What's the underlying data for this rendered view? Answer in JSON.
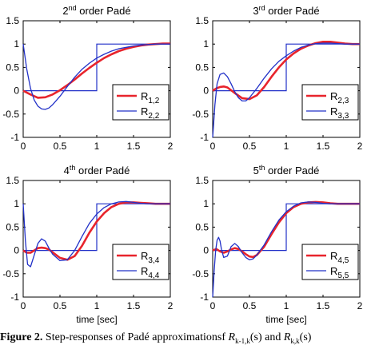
{
  "chart_data": [
    {
      "type": "line",
      "title": {
        "pre": "2",
        "sup": "nd",
        "post": " order Padé"
      },
      "xlabel": "",
      "xlim": [
        0,
        2
      ],
      "ylim": [
        -1,
        1.5
      ],
      "xticks": [
        "0",
        "0.5",
        "1",
        "1.5",
        "2"
      ],
      "yticks": [
        "-1",
        "-0.5",
        "0",
        "0.5",
        "1",
        "1.5"
      ],
      "legend": "right",
      "series": [
        {
          "name": "R",
          "sub": "1,2",
          "color": "#e8242c",
          "x": [
            0,
            0.1,
            0.2,
            0.3,
            0.4,
            0.5,
            0.6,
            0.7,
            0.8,
            0.9,
            1.0,
            1.1,
            1.2,
            1.3,
            1.4,
            1.5,
            1.6,
            1.7,
            1.8,
            1.9,
            2.0
          ],
          "y": [
            0,
            -0.08,
            -0.15,
            -0.14,
            -0.08,
            0.01,
            0.12,
            0.24,
            0.37,
            0.49,
            0.6,
            0.7,
            0.78,
            0.85,
            0.9,
            0.94,
            0.97,
            0.99,
            1.0,
            1.01,
            1.01
          ]
        },
        {
          "name": "R",
          "sub": "2,2",
          "color": "#2231c8",
          "x": [
            0,
            0.05,
            0.1,
            0.15,
            0.2,
            0.25,
            0.3,
            0.35,
            0.4,
            0.5,
            0.6,
            0.7,
            0.8,
            0.9,
            1.0,
            1.1,
            1.2,
            1.3,
            1.4,
            1.5,
            1.6,
            1.7,
            1.8,
            1.9,
            2.0
          ],
          "y": [
            1.0,
            0.45,
            0.05,
            -0.2,
            -0.33,
            -0.39,
            -0.4,
            -0.37,
            -0.3,
            -0.12,
            0.09,
            0.29,
            0.46,
            0.59,
            0.7,
            0.78,
            0.85,
            0.9,
            0.93,
            0.96,
            0.98,
            0.99,
            1.0,
            1.0,
            1.0
          ]
        }
      ],
      "step": {
        "x": [
          0,
          1,
          1,
          2
        ],
        "y": [
          0,
          0,
          1,
          1
        ],
        "color": "#2231c8"
      }
    },
    {
      "type": "line",
      "title": {
        "pre": "3",
        "sup": "rd",
        "post": " order Padé"
      },
      "xlabel": "",
      "xlim": [
        0,
        2
      ],
      "ylim": [
        -1,
        1.5
      ],
      "xticks": [
        "0",
        "0.5",
        "1",
        "1.5",
        "2"
      ],
      "yticks": [
        "-1",
        "-0.5",
        "0",
        "0.5",
        "1",
        "1.5"
      ],
      "legend": "right",
      "series": [
        {
          "name": "R",
          "sub": "2,3",
          "color": "#e8242c",
          "x": [
            0,
            0.05,
            0.1,
            0.15,
            0.2,
            0.3,
            0.4,
            0.5,
            0.6,
            0.7,
            0.8,
            0.9,
            1.0,
            1.1,
            1.2,
            1.3,
            1.4,
            1.5,
            1.6,
            1.7,
            1.8,
            1.9,
            2.0
          ],
          "y": [
            0,
            0.05,
            0.08,
            0.09,
            0.07,
            -0.05,
            -0.16,
            -0.18,
            -0.1,
            0.08,
            0.3,
            0.5,
            0.67,
            0.8,
            0.9,
            0.97,
            1.02,
            1.05,
            1.05,
            1.03,
            1.01,
            1.0,
            1.0
          ]
        },
        {
          "name": "R",
          "sub": "3,3",
          "color": "#2231c8",
          "x": [
            0,
            0.03,
            0.06,
            0.1,
            0.15,
            0.2,
            0.25,
            0.3,
            0.35,
            0.4,
            0.45,
            0.5,
            0.6,
            0.7,
            0.8,
            0.9,
            1.0,
            1.1,
            1.2,
            1.3,
            1.4,
            1.5,
            1.6,
            1.7,
            1.8,
            1.9,
            2.0
          ],
          "y": [
            -1.0,
            -0.3,
            0.15,
            0.35,
            0.38,
            0.3,
            0.15,
            -0.02,
            -0.15,
            -0.22,
            -0.22,
            -0.15,
            0.05,
            0.27,
            0.47,
            0.63,
            0.75,
            0.85,
            0.93,
            0.98,
            1.01,
            1.02,
            1.02,
            1.01,
            1.0,
            1.0,
            1.0
          ]
        }
      ],
      "step": {
        "x": [
          0,
          1,
          1,
          2
        ],
        "y": [
          0,
          0,
          1,
          1
        ],
        "color": "#2231c8"
      }
    },
    {
      "type": "line",
      "title": {
        "pre": "4",
        "sup": "th",
        "post": " order Padé"
      },
      "xlabel": "time   [sec]",
      "xlim": [
        0,
        2
      ],
      "ylim": [
        -1,
        1.5
      ],
      "xticks": [
        "0",
        "0.5",
        "1",
        "1.5",
        "2"
      ],
      "yticks": [
        "-1",
        "-0.5",
        "0",
        "0.5",
        "1",
        "1.5"
      ],
      "legend": "right",
      "series": [
        {
          "name": "R",
          "sub": "3,4",
          "color": "#e8242c",
          "x": [
            0,
            0.05,
            0.1,
            0.15,
            0.2,
            0.25,
            0.3,
            0.35,
            0.4,
            0.5,
            0.6,
            0.7,
            0.8,
            0.9,
            1.0,
            1.1,
            1.2,
            1.3,
            1.4,
            1.5,
            1.6,
            1.7,
            1.8,
            1.9,
            2.0
          ],
          "y": [
            0,
            -0.05,
            -0.05,
            0.0,
            0.05,
            0.06,
            0.05,
            0.02,
            -0.04,
            -0.16,
            -0.2,
            -0.12,
            0.1,
            0.38,
            0.62,
            0.8,
            0.93,
            1.0,
            1.03,
            1.03,
            1.02,
            1.01,
            1.0,
            1.0,
            1.0
          ]
        },
        {
          "name": "R",
          "sub": "4,4",
          "color": "#2231c8",
          "x": [
            0,
            0.03,
            0.06,
            0.1,
            0.15,
            0.2,
            0.25,
            0.3,
            0.35,
            0.4,
            0.5,
            0.6,
            0.7,
            0.8,
            0.9,
            1.0,
            1.1,
            1.2,
            1.3,
            1.4,
            1.5,
            1.6,
            1.7,
            1.8,
            1.9,
            2.0
          ],
          "y": [
            1.0,
            0.2,
            -0.3,
            -0.35,
            -0.1,
            0.15,
            0.25,
            0.2,
            0.05,
            -0.08,
            -0.22,
            -0.2,
            0.0,
            0.3,
            0.58,
            0.78,
            0.92,
            1.0,
            1.04,
            1.05,
            1.03,
            1.01,
            1.0,
            1.0,
            1.0,
            1.0
          ]
        }
      ],
      "step": {
        "x": [
          0,
          1,
          1,
          2
        ],
        "y": [
          0,
          0,
          1,
          1
        ],
        "color": "#2231c8"
      }
    },
    {
      "type": "line",
      "title": {
        "pre": "5",
        "sup": "th",
        "post": " order Padé"
      },
      "xlabel": "time   [sec]",
      "xlim": [
        0,
        2
      ],
      "ylim": [
        -1,
        1.5
      ],
      "xticks": [
        "0",
        "0.5",
        "1",
        "1.5",
        "2"
      ],
      "yticks": [
        "-1",
        "-0.5",
        "0",
        "0.5",
        "1",
        "1.5"
      ],
      "legend": "right",
      "series": [
        {
          "name": "R",
          "sub": "4,5",
          "color": "#e8242c",
          "x": [
            0,
            0.05,
            0.1,
            0.15,
            0.2,
            0.25,
            0.3,
            0.35,
            0.4,
            0.45,
            0.5,
            0.55,
            0.6,
            0.7,
            0.8,
            0.9,
            1.0,
            1.1,
            1.2,
            1.3,
            1.4,
            1.5,
            1.6,
            1.7,
            1.8,
            1.9,
            2.0
          ],
          "y": [
            0,
            0.03,
            -0.02,
            -0.05,
            -0.02,
            0.02,
            0.05,
            0.03,
            -0.02,
            -0.08,
            -0.13,
            -0.14,
            -0.1,
            0.08,
            0.35,
            0.6,
            0.8,
            0.93,
            1.0,
            1.03,
            1.04,
            1.03,
            1.01,
            1.0,
            1.0,
            1.0,
            1.0
          ]
        },
        {
          "name": "R",
          "sub": "5,5",
          "color": "#2231c8",
          "x": [
            0,
            0.02,
            0.04,
            0.06,
            0.08,
            0.1,
            0.12,
            0.15,
            0.2,
            0.25,
            0.3,
            0.35,
            0.4,
            0.45,
            0.5,
            0.55,
            0.6,
            0.7,
            0.8,
            0.9,
            1.0,
            1.1,
            1.2,
            1.3,
            1.4,
            1.5,
            1.6,
            1.7,
            1.8,
            1.9,
            2.0
          ],
          "y": [
            -1.0,
            -0.45,
            0.0,
            0.22,
            0.28,
            0.2,
            0.02,
            -0.15,
            -0.12,
            0.08,
            0.15,
            0.08,
            -0.05,
            -0.15,
            -0.2,
            -0.18,
            -0.1,
            0.12,
            0.4,
            0.65,
            0.83,
            0.95,
            1.02,
            1.04,
            1.03,
            1.01,
            1.0,
            1.0,
            1.0,
            1.0,
            1.0
          ]
        }
      ],
      "step": {
        "x": [
          0,
          1,
          1,
          2
        ],
        "y": [
          0,
          0,
          1,
          1
        ],
        "color": "#2231c8"
      }
    }
  ],
  "caption": {
    "label": "Figure 2.",
    "text": " Step-responses of Padé approximationsf  ",
    "sym1": "R",
    "sub1": "k-1,k",
    "mid": "(s) and  ",
    "sym2": "R",
    "sub2": "k,k",
    "end": "(s)"
  }
}
